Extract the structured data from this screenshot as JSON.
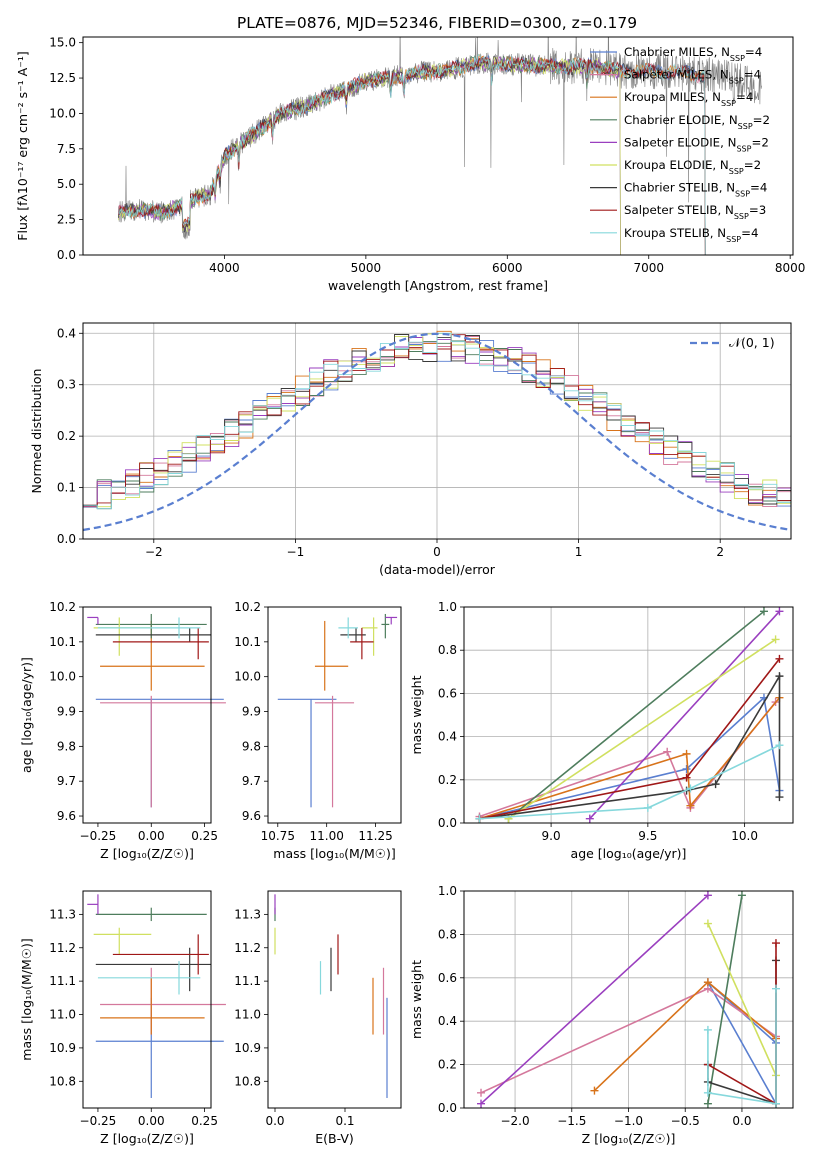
{
  "figure": {
    "title": "PLATE=0876, MJD=52346, FIBERID=0300, z=0.179"
  },
  "chart_data": [
    {
      "id": "spectrum",
      "type": "line",
      "xlabel": "wavelength [Angstrom, rest frame]",
      "ylabel": "Flux [fλ10⁻¹⁷ erg cm⁻² s⁻¹ A⁻¹]",
      "xlim": [
        3000,
        8020
      ],
      "ylim": [
        0,
        15.4
      ],
      "xticks": [
        4000,
        5000,
        6000,
        7000,
        8000
      ],
      "yticks": [
        0.0,
        2.5,
        5.0,
        7.5,
        10.0,
        12.5,
        15.0
      ],
      "grid": false,
      "legend_position": "top-right",
      "continuum": {
        "x": [
          3250,
          3400,
          3550,
          3650,
          3800,
          3900,
          4000,
          4200,
          4400,
          4600,
          4800,
          5000,
          5200,
          5400,
          5600,
          5800,
          6000,
          6200,
          6400,
          6600,
          6800,
          7000,
          7200,
          7400,
          7600,
          7800
        ],
        "y": [
          3.0,
          3.2,
          3.0,
          3.3,
          4.0,
          4.3,
          7.0,
          8.5,
          10.0,
          10.6,
          11.5,
          12.3,
          12.6,
          12.9,
          13.1,
          13.6,
          13.5,
          13.4,
          13.3,
          13.4,
          13.0,
          13.0,
          12.9,
          12.7,
          12.5,
          11.8
        ]
      },
      "series": [
        {
          "name": "Chabrier MILES, N_SSP=4",
          "color": "#5a7fd0",
          "x_end": 7400
        },
        {
          "name": "Salpeter MILES, N_SSP=4",
          "color": "#d4789c",
          "x_end": 7400
        },
        {
          "name": "Kroupa MILES, N_SSP=4",
          "color": "#d8731a",
          "x_end": 7400
        },
        {
          "name": "Chabrier ELODIE, N_SSP=2",
          "color": "#4e7d5d",
          "x_end": 6800
        },
        {
          "name": "Salpeter ELODIE, N_SSP=2",
          "color": "#9a3fbf",
          "x_end": 6800
        },
        {
          "name": "Kroupa ELODIE, N_SSP=2",
          "color": "#d0e060",
          "x_end": 6800
        },
        {
          "name": "Chabrier STELIB, N_SSP=4",
          "color": "#3a3a3a",
          "x_end": 7400
        },
        {
          "name": "Salpeter STELIB, N_SSP=3",
          "color": "#a01818",
          "x_end": 7400
        },
        {
          "name": "Kroupa STELIB, N_SSP=4",
          "color": "#86d8dc",
          "x_end": 7400
        }
      ],
      "data_color": "#808080"
    },
    {
      "id": "residuals",
      "type": "area",
      "xlabel": "(data-model)/error",
      "ylabel": "Normed distribution",
      "xlim": [
        -2.5,
        2.5
      ],
      "ylim": [
        0,
        0.42
      ],
      "xticks": [
        -2,
        -1,
        0,
        1,
        2
      ],
      "yticks": [
        0.0,
        0.1,
        0.2,
        0.3,
        0.4
      ],
      "grid": true,
      "legend_position": "top-right",
      "reference": {
        "name": "𝒩(0, 1)",
        "color": "#5a7fd0"
      },
      "bins": 50
    },
    {
      "id": "age-vs-Z",
      "type": "scatter",
      "xlabel": "Z [log₁₀(Z/Z☉)]",
      "ylabel": "age  [log₁₀(age/yr)]",
      "xlim": [
        -0.32,
        0.28
      ],
      "ylim": [
        9.58,
        10.2
      ],
      "xticks": [
        -0.25,
        0.0,
        0.25
      ],
      "xticklabels": [
        "−0.25",
        "0.00",
        "0.25"
      ],
      "yticks": [
        9.6,
        9.7,
        9.8,
        9.9,
        10.0,
        10.1,
        10.2
      ],
      "grid": false
    },
    {
      "id": "age-vs-mass",
      "type": "scatter",
      "xlabel": "mass [log₁₀(M/M☉)]",
      "ylabel": "",
      "xlim": [
        10.7,
        11.38
      ],
      "ylim": [
        9.58,
        10.2
      ],
      "xticks": [
        10.75,
        11.0,
        11.25
      ],
      "yticks": [
        9.6,
        9.7,
        9.8,
        9.9,
        10.0,
        10.1,
        10.2
      ],
      "grid": false
    },
    {
      "id": "weight-vs-age",
      "type": "line",
      "xlabel": "age  [log₁₀(age/yr)]",
      "ylabel": "mass weight",
      "xlim": [
        8.55,
        10.25
      ],
      "ylim": [
        0,
        1.0
      ],
      "xticks": [
        9.0,
        9.5,
        10.0
      ],
      "yticks": [
        0.0,
        0.2,
        0.4,
        0.6,
        0.8,
        1.0
      ],
      "grid": true
    },
    {
      "id": "mass-vs-Z",
      "type": "scatter",
      "xlabel": "Z [log₁₀(Z/Z☉)]",
      "ylabel": "mass [log₁₀(M/M☉)]",
      "xlim": [
        -0.32,
        0.28
      ],
      "ylim": [
        10.72,
        11.37
      ],
      "xticks": [
        -0.25,
        0.0,
        0.25
      ],
      "xticklabels": [
        "−0.25",
        "0.00",
        "0.25"
      ],
      "yticks": [
        10.8,
        10.9,
        11.0,
        11.1,
        11.2,
        11.3
      ],
      "grid": false
    },
    {
      "id": "mass-vs-ebv",
      "type": "scatter",
      "xlabel": "E(B-V)",
      "ylabel": "",
      "xlim": [
        -0.01,
        0.18
      ],
      "ylim": [
        10.72,
        11.37
      ],
      "xticks": [
        0.0,
        0.1
      ],
      "yticks": [
        10.8,
        10.9,
        11.0,
        11.1,
        11.2,
        11.3
      ],
      "grid": false
    },
    {
      "id": "weight-vs-Z",
      "type": "line",
      "xlabel": "Z [log₁₀(Z/Z☉)]",
      "ylabel": "mass weight",
      "xlim": [
        -2.45,
        0.45
      ],
      "ylim": [
        0,
        1.0
      ],
      "xticks": [
        -2.0,
        -1.5,
        -1.0,
        -0.5,
        0.0
      ],
      "xticklabels": [
        "−2.0",
        "−1.5",
        "−1.0",
        "−0.5",
        "0.0"
      ],
      "yticks": [
        0.0,
        0.2,
        0.4,
        0.6,
        0.8,
        1.0
      ],
      "grid": true
    }
  ],
  "models": [
    {
      "key": "chabrier_miles",
      "color": "#5a7fd0",
      "Z": 0.0,
      "Z_err": [
        0.26,
        0.34
      ],
      "age": 9.935,
      "age_err": [
        0.31,
        0.0
      ],
      "mass": 10.92,
      "mass_err": [
        0.17,
        0.13
      ],
      "ebv": 0.16,
      "ages": [
        8.63,
        9.7,
        10.1,
        10.18
      ],
      "ageW": [
        0.02,
        0.25,
        0.58,
        0.15
      ],
      "Zs": [
        0.3,
        -0.3,
        0.3,
        0.3
      ],
      "ZW": [
        0.02,
        0.58,
        0.3,
        0.02
      ]
    },
    {
      "key": "salpeter_miles",
      "color": "#d4789c",
      "Z": 0.0,
      "Z_err": [
        0.24,
        0.35
      ],
      "age": 9.925,
      "age_err": [
        0.3,
        0.02
      ],
      "mass": 11.03,
      "mass_err": [
        0.09,
        0.11
      ],
      "ebv": 0.155,
      "ages": [
        8.63,
        9.6,
        9.72,
        10.16
      ],
      "ageW": [
        0.03,
        0.33,
        0.07,
        0.56
      ],
      "Zs": [
        -2.3,
        -0.3,
        0.3,
        0.3
      ],
      "ZW": [
        0.07,
        0.55,
        0.33,
        0.02
      ]
    },
    {
      "key": "kroupa_miles",
      "color": "#d8731a",
      "Z": 0.0,
      "Z_err": [
        0.24,
        0.25
      ],
      "age": 10.03,
      "age_err": [
        0.07,
        0.13
      ],
      "mass": 10.99,
      "mass_err": [
        0.05,
        0.12
      ],
      "ebv": 0.14,
      "ages": [
        8.63,
        9.7,
        9.72,
        10.18
      ],
      "ageW": [
        0.02,
        0.32,
        0.08,
        0.58
      ],
      "Zs": [
        -1.3,
        -0.3,
        0.3,
        0.3
      ],
      "ZW": [
        0.08,
        0.58,
        0.32,
        0.02
      ]
    },
    {
      "key": "chabrier_elodie",
      "color": "#4e7d5d",
      "Z": 0.0,
      "Z_err": [
        0.26,
        0.26
      ],
      "age": 10.15,
      "age_err": [
        0.04,
        0.03
      ],
      "mass": 11.3,
      "mass_err": [
        0.02,
        0.02
      ],
      "ebv": 0.0,
      "ages": [
        8.78,
        10.1
      ],
      "ageW": [
        0.02,
        0.98
      ],
      "Zs": [
        -0.3,
        0.0
      ],
      "ZW": [
        0.02,
        0.98
      ]
    },
    {
      "key": "salpeter_elodie",
      "color": "#9a3fbf",
      "Z": -0.25,
      "Z_err": [
        0.05,
        0.0
      ],
      "age": 10.17,
      "age_err": [
        0.02,
        0.0
      ],
      "mass": 11.33,
      "mass_err": [
        0.03,
        0.03
      ],
      "ebv": 0.0,
      "ages": [
        9.2,
        10.18
      ],
      "ageW": [
        0.02,
        0.98
      ],
      "Zs": [
        -2.3,
        -0.3
      ],
      "ZW": [
        0.02,
        0.98
      ]
    },
    {
      "key": "kroupa_elodie",
      "color": "#d0e060",
      "Z": -0.15,
      "Z_err": [
        0.12,
        0.15
      ],
      "age": 10.14,
      "age_err": [
        0.08,
        0.03
      ],
      "mass": 11.24,
      "mass_err": [
        0.06,
        0.02
      ],
      "ebv": 0.0,
      "ages": [
        8.78,
        10.16
      ],
      "ageW": [
        0.02,
        0.85
      ],
      "Zs": [
        -0.3,
        0.3
      ],
      "ZW": [
        0.85,
        0.15
      ]
    },
    {
      "key": "chabrier_stelib",
      "color": "#3a3a3a",
      "Z": 0.18,
      "Z_err": [
        0.44,
        0.1
      ],
      "age": 10.12,
      "age_err": [
        0.02,
        0.02
      ],
      "mass": 11.15,
      "mass_err": [
        0.08,
        0.05
      ],
      "ebv": 0.08,
      "ages": [
        8.63,
        9.7,
        9.85,
        10.18,
        10.18
      ],
      "ageW": [
        0.02,
        0.15,
        0.18,
        0.68,
        0.12
      ],
      "Zs": [
        -0.3,
        -0.3,
        0.3,
        0.3,
        0.3
      ],
      "ZW": [
        0.2,
        0.12,
        0.02,
        0.68,
        0.02
      ]
    },
    {
      "key": "salpeter_stelib",
      "color": "#a01818",
      "Z": 0.22,
      "Z_err": [
        0.4,
        0.05
      ],
      "age": 10.1,
      "age_err": [
        0.05,
        0.04
      ],
      "mass": 11.18,
      "mass_err": [
        0.06,
        0.06
      ],
      "ebv": 0.09,
      "ages": [
        8.63,
        9.7,
        10.18
      ],
      "ageW": [
        0.02,
        0.21,
        0.76
      ],
      "Zs": [
        -0.3,
        0.3,
        0.3
      ],
      "ZW": [
        0.2,
        0.02,
        0.76
      ]
    },
    {
      "key": "kroupa_stelib",
      "color": "#86d8dc",
      "Z": 0.13,
      "Z_err": [
        0.38,
        0.1
      ],
      "age": 10.14,
      "age_err": [
        0.03,
        0.03
      ],
      "mass": 11.11,
      "mass_err": [
        0.05,
        0.05
      ],
      "ebv": 0.065,
      "ages": [
        8.63,
        9.5,
        9.72,
        10.18
      ],
      "ageW": [
        0.02,
        0.07,
        0.16,
        0.36
      ],
      "Zs": [
        -0.3,
        -0.3,
        0.3,
        0.3
      ],
      "ZW": [
        0.36,
        0.07,
        0.02,
        0.55
      ]
    }
  ]
}
